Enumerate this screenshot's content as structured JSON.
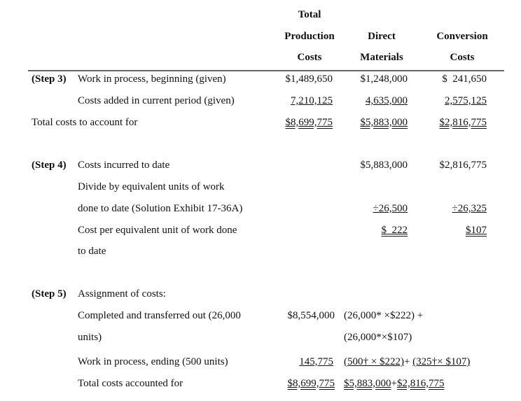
{
  "header": {
    "col1": [
      "Total",
      "Production",
      "Costs"
    ],
    "col2": [
      "Direct",
      "Materials"
    ],
    "col3": [
      "Conversion",
      "Costs"
    ]
  },
  "step3": {
    "step": "(Step 3)",
    "rows": [
      {
        "label": "Work in process, beginning (given)",
        "c1": "$1,489,650",
        "c2": "$1,248,000",
        "c3": "$  241,650"
      },
      {
        "label": "Costs added in current period (given)",
        "c1": "7,210,125",
        "c2": "4,635,000",
        "c3": "2,575,125"
      },
      {
        "label": "Total costs to account for",
        "c1": "$8,699,775",
        "c2": "$5,883,000",
        "c3": "$2,816,775"
      }
    ]
  },
  "step4": {
    "step": "(Step 4)",
    "incurred_label": "Costs incurred to date",
    "incurred_c2": "$5,883,000",
    "incurred_c3": "$2,816,775",
    "divide_label_1": "Divide by equivalent units of work",
    "divide_label_2": "done to date (Solution Exhibit 17-36A)",
    "divide_c2": "÷26,500",
    "divide_c3": "÷26,325",
    "cost_label_1": "Cost per equivalent unit of work done",
    "cost_label_2": "to date",
    "cost_c2": "$  222",
    "cost_c3": "$107"
  },
  "step5": {
    "step": "(Step 5)",
    "assign_label": "Assignment of costs:",
    "completed_label_1": "Completed and transferred out (26,000",
    "completed_label_2": "units)",
    "completed_c1": "$8,554,000",
    "completed_calc_1": "(26,000* ×$222) +",
    "completed_calc_2": "(26,000*×$107)",
    "wip_label": "Work in process, ending (500 units)",
    "wip_c1": "145,775",
    "wip_calc_a": "(500† × $222)",
    "wip_calc_plus": "+ ",
    "wip_calc_b": "(325†× $107)",
    "total_label": "Total costs accounted for",
    "total_c1": "$8,699,775",
    "total_calc_a": "$5,883,000",
    "total_calc_plus": "+",
    "total_calc_b": "$2,816,775"
  }
}
